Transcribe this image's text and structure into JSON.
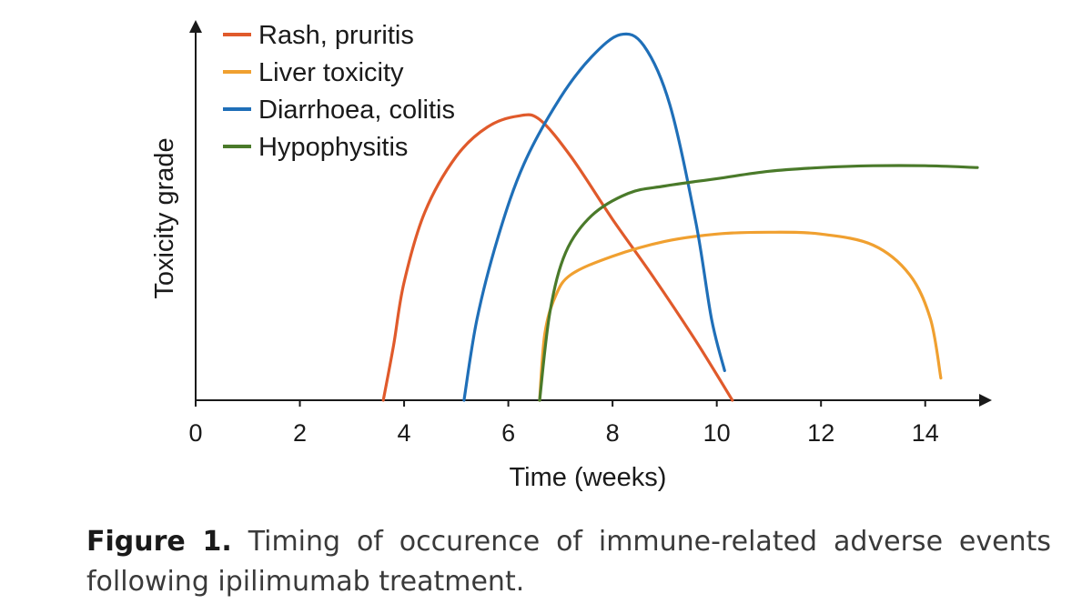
{
  "chart_data": {
    "type": "line",
    "title": "",
    "xlabel": "Time (weeks)",
    "ylabel": "Toxicity grade",
    "xlim": [
      0,
      15
    ],
    "ylim": [
      0,
      10
    ],
    "x_ticks": [
      0,
      2,
      4,
      6,
      8,
      10,
      12,
      14
    ],
    "y_ticks": [],
    "grid": false,
    "legend_position": "top-left",
    "series": [
      {
        "name": "Rash, pruritis",
        "color": "#e05a2b",
        "points": [
          [
            3.6,
            0
          ],
          [
            3.8,
            1.5
          ],
          [
            4.0,
            3.2
          ],
          [
            4.4,
            5.1
          ],
          [
            5.0,
            6.6
          ],
          [
            5.6,
            7.4
          ],
          [
            6.2,
            7.7
          ],
          [
            6.6,
            7.6
          ],
          [
            7.2,
            6.6
          ],
          [
            8.0,
            4.9
          ],
          [
            8.8,
            3.3
          ],
          [
            9.6,
            1.6
          ],
          [
            10.3,
            0
          ]
        ]
      },
      {
        "name": "Liver toxicity",
        "color": "#f0a030",
        "points": [
          [
            6.6,
            0
          ],
          [
            6.7,
            1.8
          ],
          [
            6.9,
            2.8
          ],
          [
            7.2,
            3.4
          ],
          [
            8.0,
            3.9
          ],
          [
            9.0,
            4.3
          ],
          [
            10.0,
            4.5
          ],
          [
            11.0,
            4.55
          ],
          [
            12.0,
            4.5
          ],
          [
            13.0,
            4.2
          ],
          [
            13.7,
            3.4
          ],
          [
            14.1,
            2.2
          ],
          [
            14.3,
            0.6
          ]
        ]
      },
      {
        "name": "Diarrhoea, colitis",
        "color": "#1f6fb8",
        "points": [
          [
            5.15,
            0
          ],
          [
            5.4,
            2.2
          ],
          [
            5.8,
            4.4
          ],
          [
            6.3,
            6.4
          ],
          [
            7.0,
            8.2
          ],
          [
            7.6,
            9.3
          ],
          [
            8.15,
            9.9
          ],
          [
            8.6,
            9.6
          ],
          [
            9.1,
            8.0
          ],
          [
            9.6,
            4.8
          ],
          [
            9.9,
            2.2
          ],
          [
            10.15,
            0.8
          ]
        ]
      },
      {
        "name": "Hypophysitis",
        "color": "#4a7a2a",
        "points": [
          [
            6.6,
            0
          ],
          [
            6.8,
            2.4
          ],
          [
            7.1,
            4.0
          ],
          [
            7.6,
            5.0
          ],
          [
            8.3,
            5.6
          ],
          [
            9.0,
            5.8
          ],
          [
            10.0,
            6.0
          ],
          [
            11.0,
            6.2
          ],
          [
            12.0,
            6.3
          ],
          [
            13.0,
            6.35
          ],
          [
            14.0,
            6.35
          ],
          [
            15.0,
            6.3
          ]
        ]
      }
    ]
  },
  "caption": {
    "label": "Figure 1.",
    "text": "Timing of occurence of immune-related adverse events following ipilimumab treatment."
  }
}
